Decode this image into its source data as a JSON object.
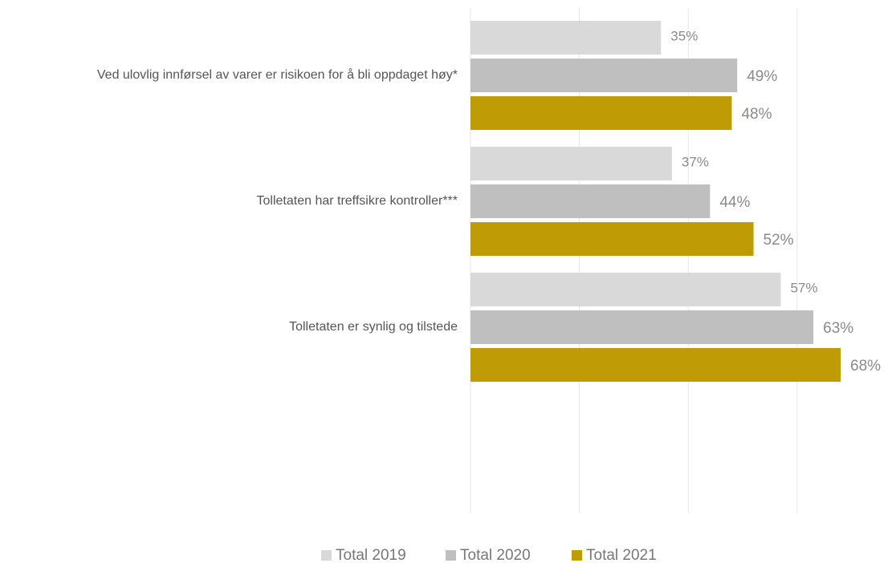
{
  "chart_data": {
    "type": "bar",
    "orientation": "horizontal",
    "categories": [
      "Ved ulovlig innførsel av varer er risikoen for å bli oppdaget høy*",
      "Tolletaten har treffsikre kontroller***",
      "Tolletaten er synlig og tilstede"
    ],
    "series": [
      {
        "name": "Total 2019",
        "color": "#d9d9d9",
        "values": [
          35,
          37,
          57
        ],
        "labels": [
          "35%",
          "37%",
          "57%"
        ]
      },
      {
        "name": "Total 2020",
        "color": "#bfbfbf",
        "values": [
          49,
          44,
          63
        ],
        "labels": [
          "49%",
          "44%",
          "63%"
        ]
      },
      {
        "name": "Total 2021",
        "color": "#bf9b06",
        "values": [
          48,
          52,
          68
        ],
        "labels": [
          "48%",
          "52%",
          "68%"
        ]
      }
    ],
    "xlim": [
      0,
      75
    ],
    "gridlines": [
      0,
      20,
      40,
      60
    ],
    "grid": true,
    "legend_position": "bottom"
  }
}
